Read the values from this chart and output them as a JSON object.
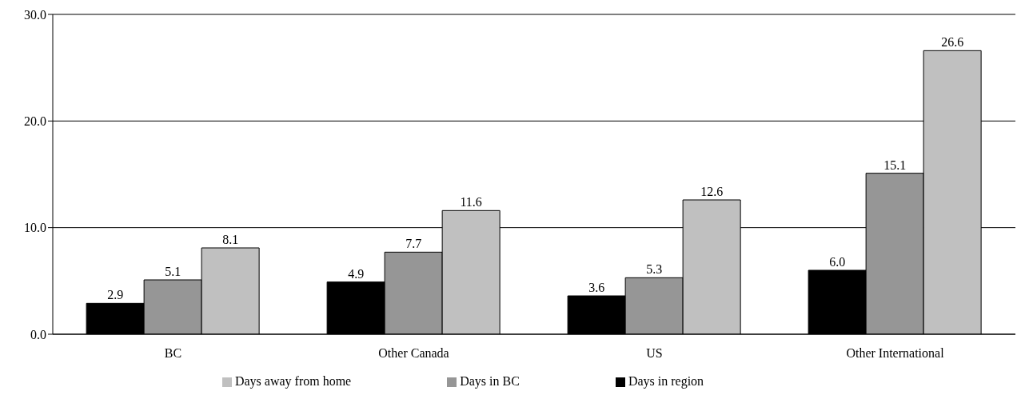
{
  "chart_data": {
    "type": "bar",
    "categories": [
      "BC",
      "Other Canada",
      "US",
      "Other International"
    ],
    "series": [
      {
        "name": "Days in region",
        "color": "#000000",
        "values": [
          2.9,
          4.9,
          3.6,
          6.0
        ],
        "value_labels": [
          "2.9",
          "4.9",
          "3.6",
          "6.0"
        ]
      },
      {
        "name": "Days in BC",
        "color": "#969696",
        "values": [
          5.1,
          7.7,
          5.3,
          15.1
        ],
        "value_labels": [
          "5.1",
          "7.7",
          "5.3",
          "15.1"
        ]
      },
      {
        "name": "Days away from home",
        "color": "#c0c0c0",
        "values": [
          8.1,
          11.6,
          12.6,
          26.6
        ],
        "value_labels": [
          "8.1",
          "11.6",
          "12.6",
          "26.6"
        ]
      }
    ],
    "ylim": [
      0,
      30
    ],
    "yticks": [
      {
        "value": 0,
        "label": "0.0"
      },
      {
        "value": 10,
        "label": "10.0"
      },
      {
        "value": 20,
        "label": "20.0"
      },
      {
        "value": 30,
        "label": "30.0"
      }
    ],
    "grid": "y",
    "legend": "bottom"
  }
}
